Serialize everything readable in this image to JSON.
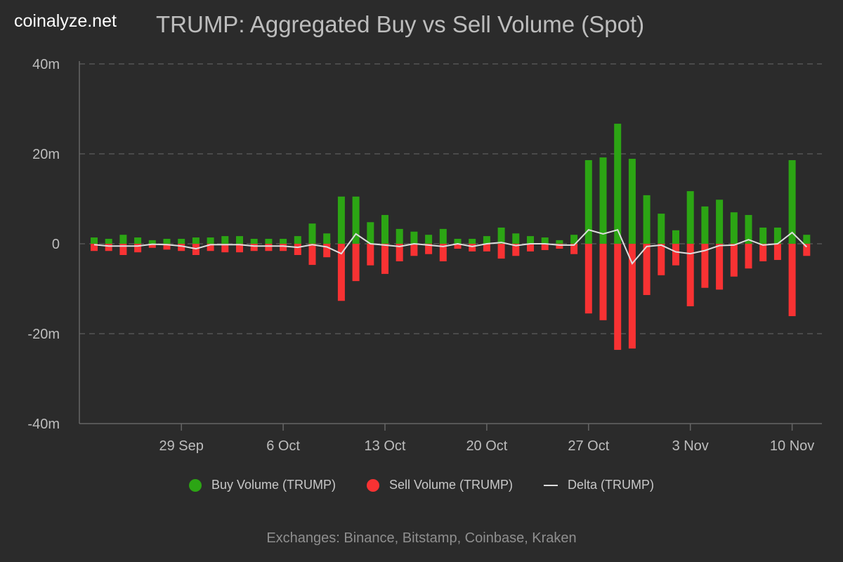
{
  "logo": "coinalyze.net",
  "chart_data": {
    "type": "bar",
    "title": "TRUMP: Aggregated Buy vs Sell Volume (Spot)",
    "start_date": "2024-09-23",
    "x_tick_labels": [
      "29 Sep",
      "6 Oct",
      "13 Oct",
      "20 Oct",
      "27 Oct",
      "3 Nov",
      "10 Nov"
    ],
    "y_tick_labels": [
      "40m",
      "20m",
      "0",
      "-20m",
      "-40m"
    ],
    "ylim": [
      -40,
      40
    ],
    "y_unit": "m",
    "grid": "horizontal dashed",
    "legend_position": "bottom",
    "colors": {
      "buy": "#2ca514",
      "sell": "#f83233",
      "delta": "#dddddd"
    },
    "series": [
      {
        "name": "Buy Volume (TRUMP)",
        "values": [
          1.4,
          1.1,
          2.0,
          1.4,
          0.8,
          1.1,
          1.1,
          1.4,
          1.4,
          1.7,
          1.7,
          1.1,
          1.1,
          1.1,
          1.7,
          4.5,
          2.3,
          10.5,
          10.5,
          4.8,
          6.4,
          3.3,
          2.7,
          2.0,
          3.3,
          1.1,
          1.1,
          1.7,
          3.6,
          2.3,
          1.7,
          1.4,
          0.8,
          2.0,
          18.6,
          19.2,
          26.7,
          18.9,
          10.8,
          6.7,
          3.0,
          11.7,
          8.3,
          9.8,
          7.0,
          6.4,
          3.6,
          3.6,
          18.6,
          2.0
        ]
      },
      {
        "name": "Sell Volume (TRUMP)",
        "values": [
          -1.6,
          -1.6,
          -2.5,
          -1.9,
          -0.9,
          -1.3,
          -1.6,
          -2.5,
          -1.6,
          -1.9,
          -1.9,
          -1.6,
          -1.6,
          -1.6,
          -2.5,
          -4.7,
          -3.0,
          -12.7,
          -8.3,
          -4.8,
          -6.7,
          -3.9,
          -2.7,
          -2.3,
          -3.9,
          -1.1,
          -1.7,
          -1.7,
          -3.3,
          -2.7,
          -1.7,
          -1.4,
          -1.1,
          -2.3,
          -15.5,
          -17.0,
          -23.6,
          -23.3,
          -11.4,
          -7.0,
          -4.8,
          -13.9,
          -9.8,
          -10.2,
          -7.3,
          -5.5,
          -3.9,
          -3.6,
          -16.1,
          -2.7
        ]
      },
      {
        "name": "Delta (TRUMP)",
        "values": [
          -0.2,
          -0.5,
          -0.5,
          -0.5,
          -0.1,
          -0.2,
          -0.5,
          -1.1,
          -0.2,
          -0.2,
          -0.2,
          -0.5,
          -0.5,
          -0.5,
          -0.8,
          -0.2,
          -0.7,
          -2.2,
          2.2,
          0,
          -0.3,
          -0.6,
          0,
          -0.3,
          -0.6,
          0,
          -0.6,
          0,
          0.3,
          -0.4,
          0,
          0,
          -0.3,
          -0.3,
          3.1,
          2.2,
          3.1,
          -4.4,
          -0.6,
          -0.3,
          -1.8,
          -2.2,
          -1.5,
          -0.4,
          -0.3,
          0.9,
          -0.3,
          0,
          2.5,
          -0.7
        ]
      }
    ]
  },
  "footer": "Exchanges: Binance, Bitstamp, Coinbase, Kraken"
}
